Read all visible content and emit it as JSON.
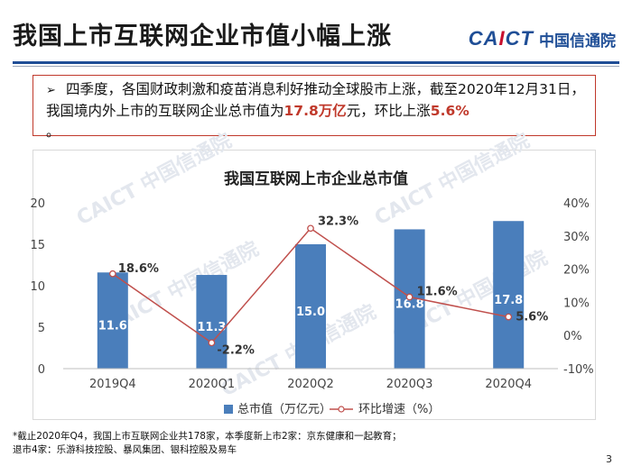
{
  "slide": {
    "title": "我国上市互联网企业市值小幅上涨",
    "logo_en": "CAICT",
    "logo_cn": "中国信通院",
    "page_number": "3"
  },
  "callout": {
    "bullet": "➢",
    "text_1": "四季度，各国财政刺激和疫苗消息利好推动全球股市上涨，截至2020年12月31日，我国境内外上市的互联网企业总市值为",
    "highlight_1": "17.8万亿",
    "text_2": "元，环比上涨",
    "highlight_2": "5.6%",
    "text_3": "。"
  },
  "watermark": {
    "text": "CAICT 中国信通院"
  },
  "chart_data": {
    "type": "bar",
    "title": "我国互联网上市企业总市值",
    "categories": [
      "2019Q4",
      "2020Q1",
      "2020Q2",
      "2020Q3",
      "2020Q4"
    ],
    "series": [
      {
        "name": "总市值（万亿元）",
        "type": "bar",
        "axis": "left",
        "values": [
          11.6,
          11.3,
          15.0,
          16.8,
          17.8
        ],
        "labels": [
          "11.6",
          "11.3",
          "15.0",
          "16.8",
          "17.8"
        ]
      },
      {
        "name": "环比增速（%）",
        "type": "line",
        "axis": "right",
        "values": [
          18.6,
          -2.2,
          32.3,
          11.6,
          5.6
        ],
        "labels": [
          "18.6%",
          "-2.2%",
          "32.3%",
          "11.6%",
          "5.6%"
        ]
      }
    ],
    "left_axis": {
      "min": 0,
      "max": 20,
      "ticks": [
        "0",
        "5",
        "10",
        "15",
        "20"
      ]
    },
    "right_axis": {
      "min": -10,
      "max": 40,
      "ticks": [
        "-10%",
        "0%",
        "10%",
        "20%",
        "30%",
        "40%"
      ]
    },
    "legend_position": "bottom",
    "grid": false,
    "colors": {
      "bar": "#4a7ebb",
      "line": "#c0504d"
    }
  },
  "footnote": {
    "line_1": "*截止2020年Q4，我国上市互联网企业共178家，本季度新上市2家：京东健康和一起教育；",
    "line_2": "退市4家：乐游科技控股、暴风集团、银科控股及易车"
  }
}
